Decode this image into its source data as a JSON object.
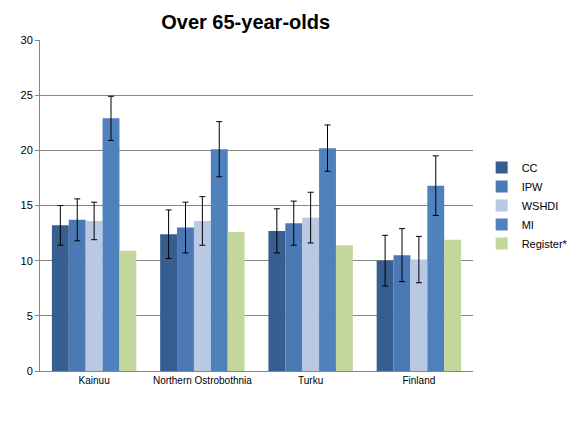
{
  "chart_data": {
    "type": "bar",
    "title": "Over 65-year-olds",
    "categories": [
      "Kainuu",
      "Northern Ostrobothnia",
      "Turku",
      "Finland"
    ],
    "series": [
      {
        "name": "CC",
        "color": "#365e8e",
        "values": [
          13.2,
          12.4,
          12.7,
          10.0
        ],
        "errors": [
          1.8,
          2.2,
          2.0,
          2.3
        ]
      },
      {
        "name": "IPW",
        "color": "#4a79b5",
        "values": [
          13.7,
          13.0,
          13.4,
          10.5
        ],
        "errors": [
          1.9,
          2.3,
          2.0,
          2.4
        ]
      },
      {
        "name": "WSHDI",
        "color": "#b9c9e3",
        "values": [
          13.6,
          13.6,
          13.9,
          10.1
        ],
        "errors": [
          1.7,
          2.2,
          2.3,
          2.1
        ]
      },
      {
        "name": "MI",
        "color": "#4f81bd",
        "values": [
          22.9,
          20.1,
          20.2,
          16.8
        ],
        "errors": [
          2.0,
          2.5,
          2.1,
          2.7
        ]
      },
      {
        "name": "Register*",
        "color": "#c3d69b",
        "values": [
          10.9,
          12.6,
          11.4,
          11.9
        ]
      }
    ],
    "ylim": [
      0,
      30
    ],
    "yticks": [
      0,
      5,
      10,
      15,
      20,
      25,
      30
    ],
    "grid": true,
    "legend": "right"
  }
}
